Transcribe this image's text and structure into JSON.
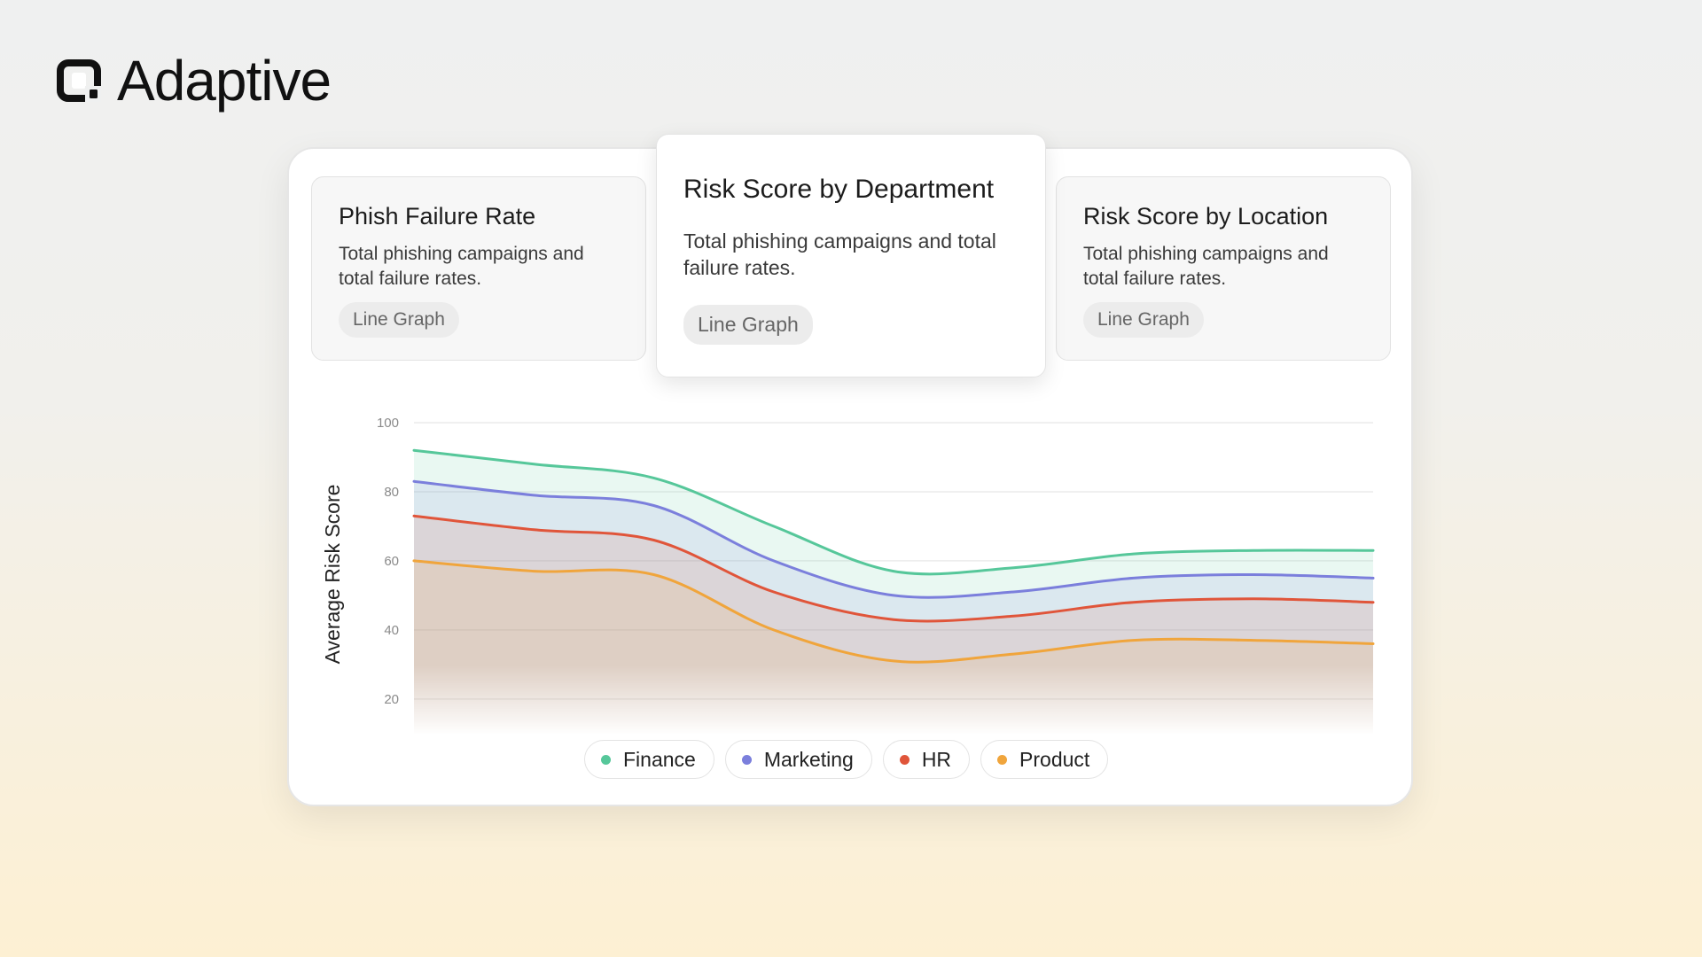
{
  "brand": {
    "name": "Adaptive",
    "logo_icon": "adaptive-logo-icon"
  },
  "cards": [
    {
      "title": "Phish Failure Rate",
      "description": "Total phishing campaigns and total failure rates.",
      "tag": "Line Graph"
    },
    {
      "title": "Risk Score by Department",
      "description": "Total phishing campaigns and total failure rates.",
      "tag": "Line Graph"
    },
    {
      "title": "Risk Score by Location",
      "description": "Total phishing campaigns and total failure rates.",
      "tag": "Line Graph"
    }
  ],
  "chart_data": {
    "type": "area",
    "title": "Risk Score by Department",
    "xlabel": "",
    "ylabel": "Average Risk Score",
    "ylim": [
      12,
      100
    ],
    "y_ticks": [
      100,
      80,
      60,
      40,
      20
    ],
    "grid": true,
    "legend_position": "bottom-center",
    "x": [
      0,
      1,
      2,
      3,
      4,
      5,
      6,
      7,
      8
    ],
    "series": [
      {
        "name": "Finance",
        "color": "#56c79a",
        "values": [
          92,
          88,
          84,
          70,
          57,
          58,
          62,
          63,
          63
        ]
      },
      {
        "name": "Marketing",
        "color": "#7b7fdc",
        "values": [
          83,
          79,
          76,
          60,
          50,
          51,
          55,
          56,
          55
        ]
      },
      {
        "name": "HR",
        "color": "#e0553a",
        "values": [
          73,
          69,
          66,
          51,
          43,
          44,
          48,
          49,
          48
        ]
      },
      {
        "name": "Product",
        "color": "#f0a53c",
        "values": [
          60,
          57,
          56,
          40,
          31,
          33,
          37,
          37,
          36
        ]
      }
    ]
  }
}
